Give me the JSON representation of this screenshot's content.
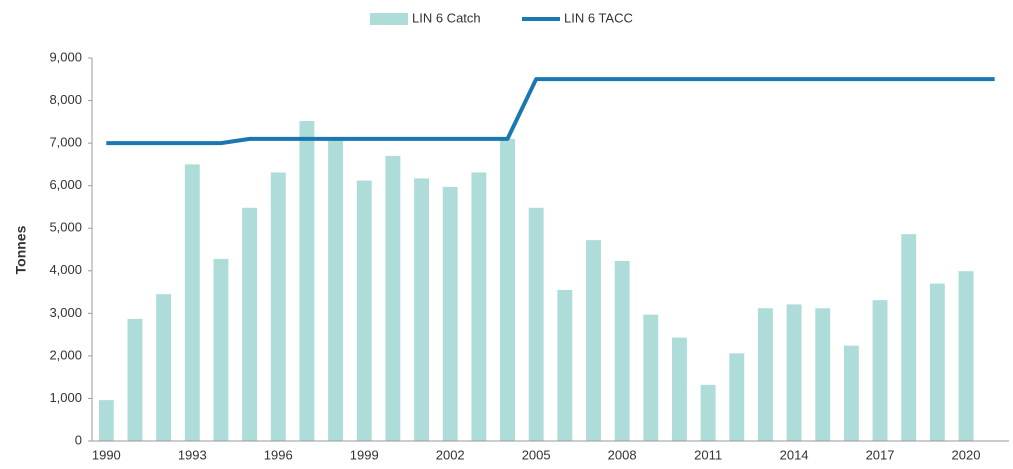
{
  "chart_data": {
    "type": "bar_line",
    "y_label": "Tonnes",
    "categories": [
      "1990",
      null,
      null,
      "1993",
      null,
      null,
      "1996",
      null,
      null,
      "1999",
      null,
      null,
      "2002",
      null,
      null,
      "2005",
      null,
      null,
      "2008",
      null,
      null,
      "2011",
      null,
      null,
      "2014",
      null,
      null,
      "2017",
      null,
      null,
      "2020",
      null
    ],
    "series": [
      {
        "name": "LIN 6 Catch",
        "type": "bar",
        "color": "#aedcd8",
        "values": [
          960,
          2870,
          3450,
          6500,
          4280,
          5480,
          6310,
          7520,
          7100,
          6120,
          6700,
          6170,
          5970,
          6310,
          7100,
          5480,
          3550,
          4720,
          4230,
          2970,
          2430,
          1320,
          2060,
          3120,
          3210,
          3120,
          2240,
          3310,
          4860,
          3700,
          3990,
          null
        ]
      },
      {
        "name": "LIN 6 TACC",
        "type": "line",
        "color": "#1a78b0",
        "values": [
          7000,
          7000,
          7000,
          7000,
          7000,
          7100,
          7100,
          7100,
          7100,
          7100,
          7100,
          7100,
          7100,
          7100,
          7100,
          8505,
          8505,
          8505,
          8505,
          8505,
          8505,
          8505,
          8505,
          8505,
          8505,
          8505,
          8505,
          8505,
          8505,
          8505,
          8505,
          8505
        ]
      }
    ],
    "ylim": [
      0,
      9000
    ],
    "yticks": [
      0,
      {
        "value": 1000,
        "label": "1,000"
      },
      {
        "value": 2000,
        "label": "2,000"
      },
      {
        "value": 3000,
        "label": "3,000"
      },
      {
        "value": 4000,
        "label": "4,000"
      },
      {
        "value": 5000,
        "label": "5,000"
      },
      {
        "value": 6000,
        "label": "6,000"
      },
      {
        "value": 7000,
        "label": "7,000"
      },
      {
        "value": 8000,
        "label": "8,000"
      },
      {
        "value": 9000,
        "label": "9,000"
      }
    ],
    "grid": false,
    "legend": "top"
  }
}
